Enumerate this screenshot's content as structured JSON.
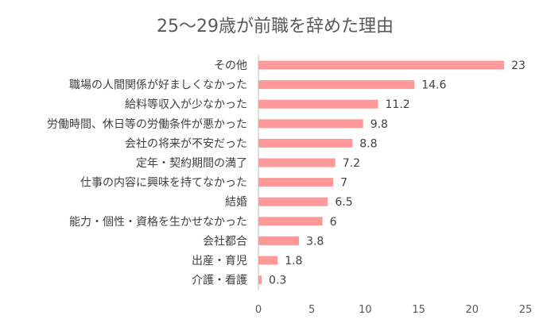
{
  "chart_data": {
    "type": "bar",
    "orientation": "horizontal",
    "title": "25〜29歳が前職を辞めた理由",
    "categories": [
      "その他",
      "職場の人間関係が好ましくなかった",
      "給料等収入が少なかった",
      "労働時間、休日等の労働条件が悪かった",
      "会社の将来が不安だった",
      "定年・契約期間の満了",
      "仕事の内容に興味を持てなかった",
      "結婚",
      "能力・個性・資格を生かせなかった",
      "会社都合",
      "出産・育児",
      "介護・看護"
    ],
    "values": [
      23,
      14.6,
      11.2,
      9.8,
      8.8,
      7.2,
      7,
      6.5,
      6,
      3.8,
      1.8,
      0.3
    ],
    "value_labels": [
      "23",
      "14.6",
      "11.2",
      "9.8",
      "8.8",
      "7.2",
      "7",
      "6.5",
      "6",
      "3.8",
      "1.8",
      "0.3"
    ],
    "xlim": [
      0,
      25
    ],
    "xticks": [
      0,
      5,
      10,
      15,
      20,
      25
    ],
    "xtick_labels": [
      "0",
      "5",
      "10",
      "15",
      "20",
      "25"
    ],
    "grid": false,
    "legend": "none",
    "bar_color": "#ff9999"
  }
}
